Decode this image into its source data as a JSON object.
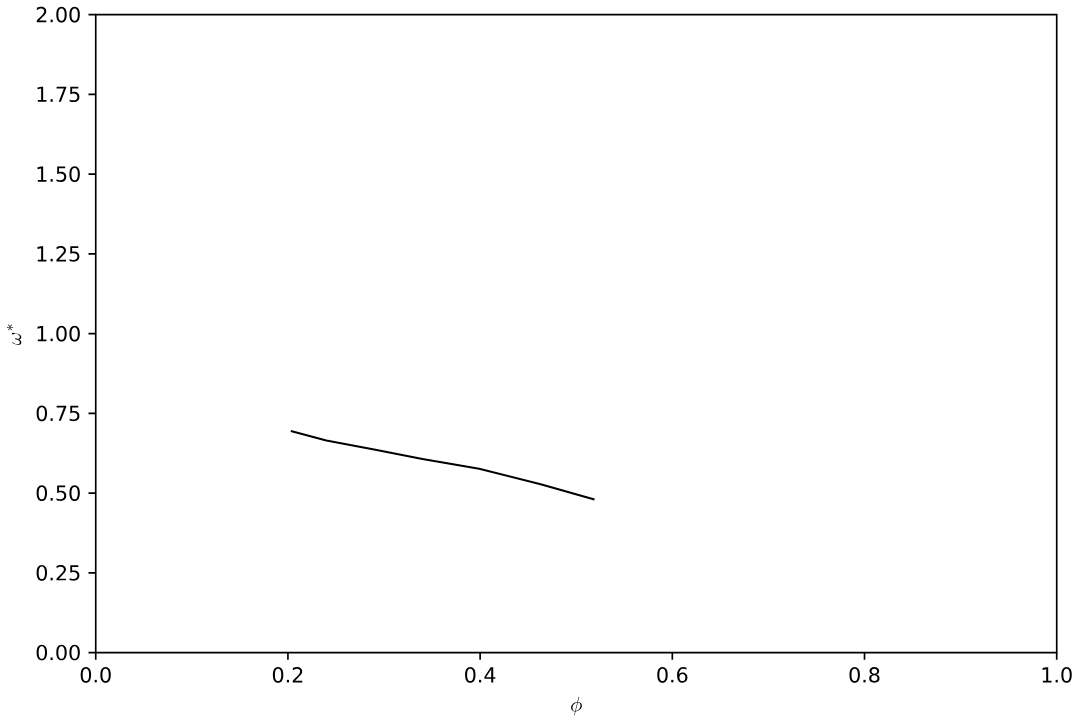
{
  "chart_data": {
    "type": "line",
    "xlabel": "\\phi",
    "ylabel": "\\omega^*",
    "x": [
      0.203,
      0.24,
      0.291,
      0.34,
      0.399,
      0.463,
      0.519
    ],
    "series": [
      {
        "color": "#000000",
        "values": [
          0.695,
          0.665,
          0.636,
          0.607,
          0.576,
          0.528,
          0.48
        ]
      }
    ],
    "xlim": [
      0,
      1
    ],
    "ylim": [
      0,
      2
    ],
    "xticks": [
      {
        "value": 0,
        "label": "0.0"
      },
      {
        "value": 0.2,
        "label": "0.2"
      },
      {
        "value": 0.4,
        "label": "0.4"
      },
      {
        "value": 0.6,
        "label": "0.6"
      },
      {
        "value": 0.8,
        "label": "0.8"
      },
      {
        "value": 1,
        "label": "1.0"
      }
    ],
    "yticks": [
      {
        "value": 0,
        "label": "0.00"
      },
      {
        "value": 0.25,
        "label": "0.25"
      },
      {
        "value": 0.5,
        "label": "0.50"
      },
      {
        "value": 0.75,
        "label": "0.75"
      },
      {
        "value": 1,
        "label": "1.00"
      },
      {
        "value": 1.25,
        "label": "1.25"
      },
      {
        "value": 1.5,
        "label": "1.50"
      },
      {
        "value": 1.75,
        "label": "1.75"
      },
      {
        "value": 2,
        "label": "2.00"
      }
    ]
  }
}
